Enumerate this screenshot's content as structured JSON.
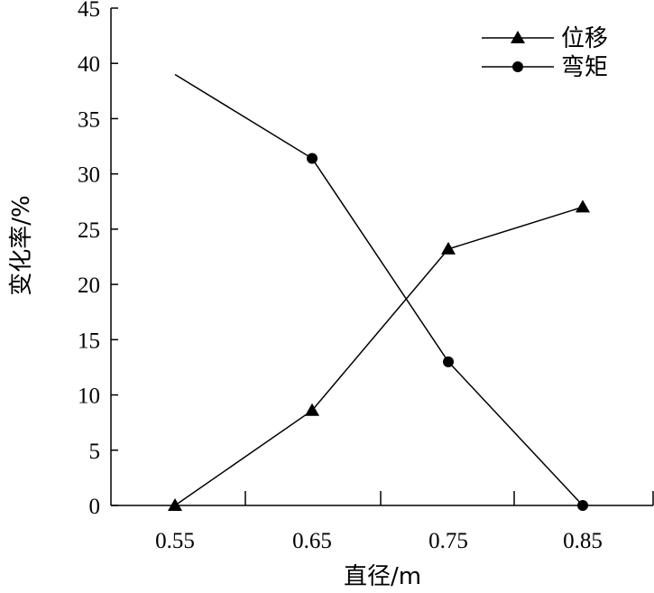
{
  "chart_data": {
    "type": "line",
    "x": [
      "0.55",
      "0.65",
      "0.75",
      "0.85"
    ],
    "xlabel": "直径/m",
    "ylabel": "变化率/%",
    "ylim": [
      0,
      45
    ],
    "yticks": [
      "0",
      "5",
      "10",
      "15",
      "20",
      "25",
      "30",
      "35",
      "40",
      "45"
    ],
    "grid": false,
    "legend_position": "top-right",
    "series": [
      {
        "name": "位移",
        "marker": "triangle",
        "values": [
          0,
          8.6,
          23.2,
          27.0
        ]
      },
      {
        "name": "弯矩",
        "marker": "circle",
        "values": [
          39.0,
          31.4,
          13.0,
          0
        ]
      }
    ],
    "colors": {
      "line": "#000000",
      "marker": "#000000"
    }
  }
}
